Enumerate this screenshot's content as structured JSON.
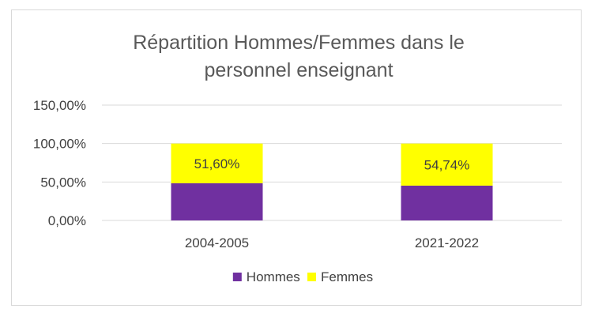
{
  "chart_data": {
    "type": "bar",
    "stacked": true,
    "title": "Répartition Hommes/Femmes dans le personnel enseignant",
    "title_lines": [
      "Répartition Hommes/Femmes dans le",
      "personnel enseignant"
    ],
    "categories": [
      "2004-2005",
      "2021-2022"
    ],
    "series": [
      {
        "name": "Hommes",
        "values": [
          48.4,
          45.26
        ],
        "color": "#7030a0"
      },
      {
        "name": "Femmes",
        "values": [
          51.6,
          54.74
        ],
        "color": "#ffff00",
        "data_labels": [
          "51,60%",
          "54,74%"
        ]
      }
    ],
    "ylim": [
      0,
      150
    ],
    "yticks": [
      0,
      50,
      100,
      150
    ],
    "ytick_labels": [
      "0,00%",
      "50,00%",
      "100,00%",
      "150,00%"
    ],
    "xlabel": "",
    "ylabel": "",
    "grid": true,
    "legend_position": "bottom"
  }
}
